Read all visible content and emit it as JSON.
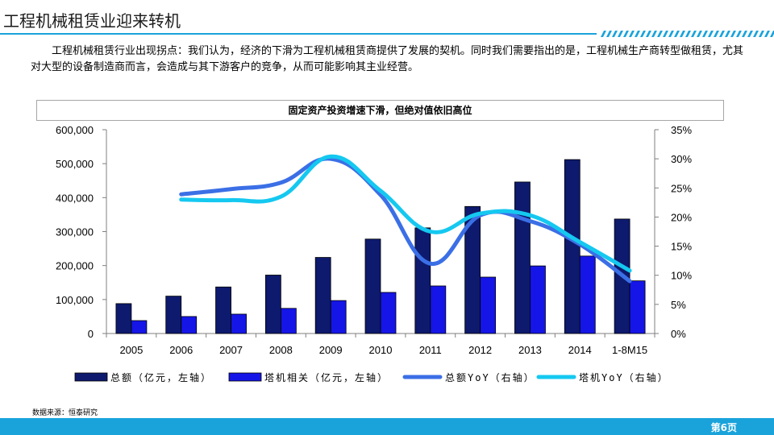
{
  "page": {
    "title": "工程机械租赁业迎来转机",
    "intro": "工程机械租赁行业出现拐点：我们认为，经济的下滑为工程机械租赁商提供了发展的契机。同时我们需要指出的是，工程机械生产商转型做租赁，尤其对大型的设备制造商而言，会造成与其下游客户的竞争，从而可能影响其主业经营。",
    "source": "数据来源：恒泰研究",
    "page_number": "第6页",
    "accent_color": "#1aa3db"
  },
  "chart_data": {
    "type": "bar",
    "title": "固定资产投资增速下滑，但绝对值依旧高位",
    "categories": [
      "2005",
      "2006",
      "2007",
      "2008",
      "2009",
      "2010",
      "2011",
      "2012",
      "2013",
      "2014",
      "1-8M15"
    ],
    "y_left": {
      "min": 0,
      "max": 600000,
      "ticks": [
        "0",
        "100,000",
        "200,000",
        "300,000",
        "400,000",
        "500,000",
        "600,000"
      ]
    },
    "y_right": {
      "min": 0,
      "max": 35,
      "ticks": [
        "0%",
        "5%",
        "10%",
        "15%",
        "20%",
        "25%",
        "30%",
        "35%"
      ]
    },
    "grid": false,
    "legend_position": "bottom",
    "series": [
      {
        "name": "总额（亿元，左轴）",
        "type": "bar",
        "axis": "left",
        "color": "#0d1a6e",
        "values": [
          88000,
          110000,
          137000,
          172000,
          224000,
          278000,
          311000,
          374000,
          446000,
          512000,
          337000
        ]
      },
      {
        "name": "塔机相关（亿元，左轴）",
        "type": "bar",
        "axis": "left",
        "color": "#1515e8",
        "values": [
          38000,
          50000,
          57000,
          74000,
          97000,
          121000,
          140000,
          166000,
          199000,
          228000,
          155000
        ]
      },
      {
        "name": "总额YoY（右轴）",
        "type": "line",
        "axis": "right",
        "color": "#3b6fe6",
        "values": [
          null,
          23.9,
          24.8,
          25.9,
          30.0,
          23.8,
          12.0,
          20.3,
          19.3,
          15.3,
          9.0
        ]
      },
      {
        "name": "塔机YoY（右轴）",
        "type": "line",
        "axis": "right",
        "color": "#15c8f0",
        "values": [
          null,
          23.0,
          22.9,
          23.5,
          30.4,
          24.5,
          17.5,
          20.6,
          20.3,
          15.7,
          10.8
        ]
      }
    ]
  }
}
